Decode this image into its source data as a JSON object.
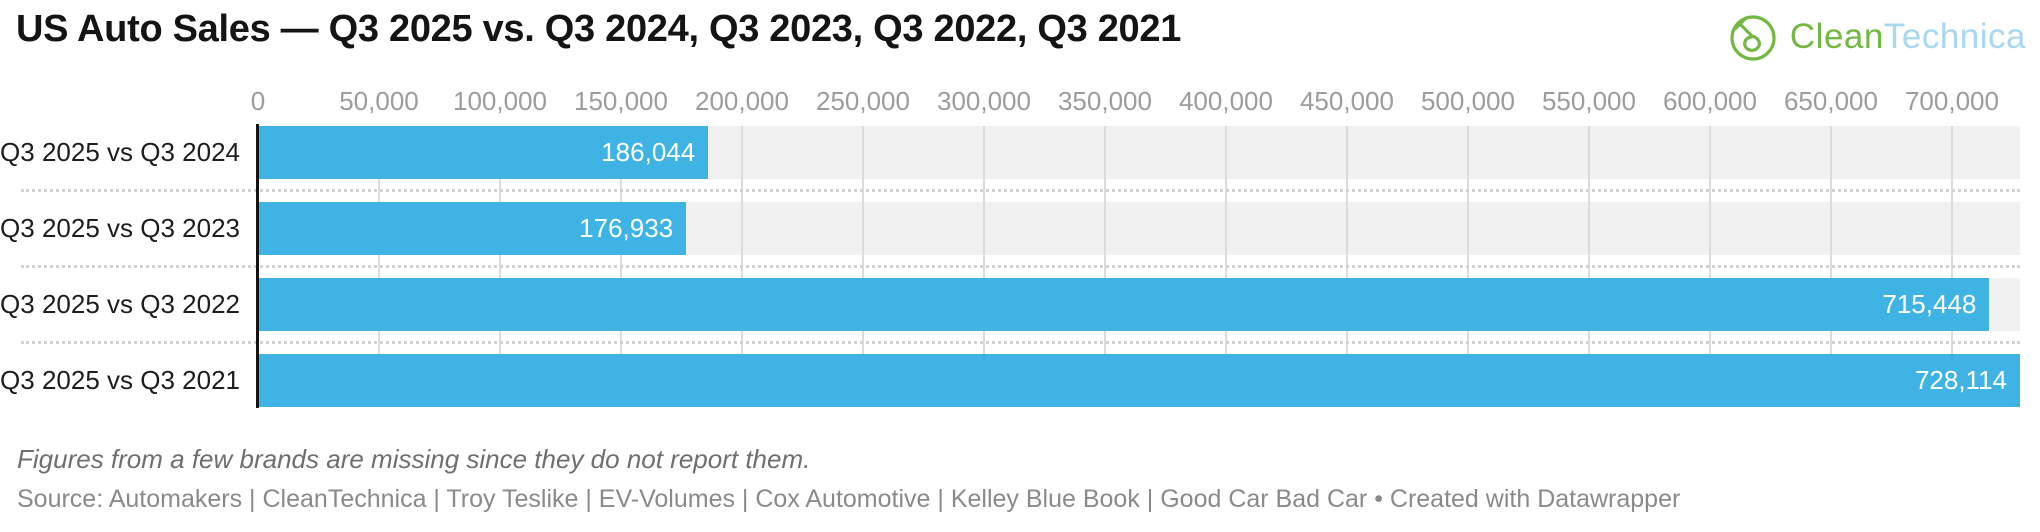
{
  "header": {
    "title": "US Auto Sales — Q3 2025 vs. Q3 2024, Q3 2023, Q3 2022, Q3 2021",
    "logo": {
      "icon": "cleantechnica-plug-icon",
      "text_primary": "Clean",
      "text_secondary": "Technica",
      "color_primary": "#74b843",
      "color_secondary": "#a9d7f0"
    }
  },
  "chart_data": {
    "type": "bar",
    "orientation": "horizontal",
    "title": "US Auto Sales — Q3 2025 vs. Q3 2024, Q3 2023, Q3 2022, Q3 2021",
    "categories": [
      "Q3 2025 vs Q3 2024",
      "Q3 2025 vs Q3 2023",
      "Q3 2025 vs Q3 2022",
      "Q3 2025 vs Q3 2021"
    ],
    "values": [
      186044,
      176933,
      715448,
      728114
    ],
    "value_labels": [
      "186,044",
      "176,933",
      "715,448",
      "728,114"
    ],
    "xlabel": "",
    "ylabel": "",
    "axis": {
      "min": 0,
      "max": 728114,
      "tick_step": 50000,
      "ticks": [
        0,
        50000,
        100000,
        150000,
        200000,
        250000,
        300000,
        350000,
        400000,
        450000,
        500000,
        550000,
        600000,
        650000,
        700000
      ],
      "tick_labels": [
        "0",
        "50,000",
        "100,000",
        "150,000",
        "200,000",
        "250,000",
        "300,000",
        "350,000",
        "400,000",
        "450,000",
        "500,000",
        "550,000",
        "600,000",
        "650,000",
        "700,000"
      ]
    },
    "grid": true,
    "legend": false,
    "colors": {
      "bar": "#3fb4e4",
      "row_background": "#f1f1f1",
      "gridline": "#dcdcdc",
      "separator": "#d2d2d2",
      "axis_line": "#141414",
      "tick_label": "#9c9c9c",
      "category_label": "#1d1d1d",
      "value_label": "#ffffff"
    }
  },
  "footer": {
    "note": "Figures from a few brands are missing since they do not report them.",
    "source": "Source: Automakers | CleanTechnica | Troy Teslike | EV-Volumes | Cox Automotive | Kelley Blue Book | Good Car Bad Car • Created with Datawrapper"
  }
}
